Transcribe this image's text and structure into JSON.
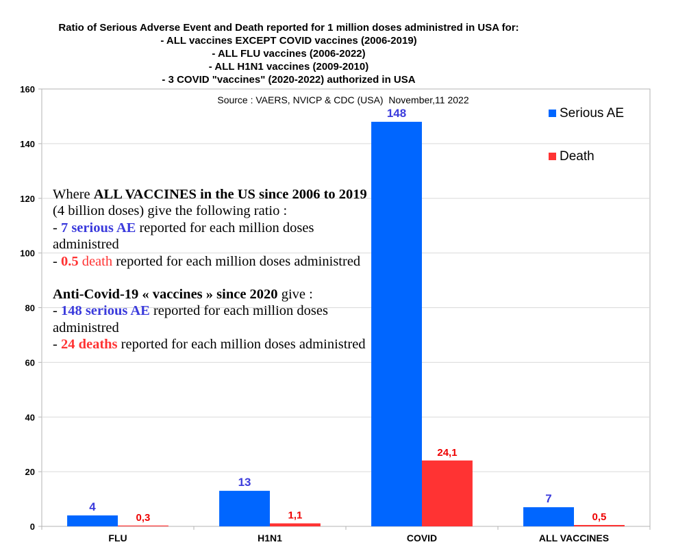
{
  "title_lines": [
    "Ratio of Serious Adverse Event and Death reported for 1 million doses administred in USA for:",
    "- ALL vaccines EXCEPT COVID vaccines (2006-2019)",
    "- ALL FLU vaccines (2006-2022)",
    "- ALL H1N1 vaccines (2009-2010)",
    "- 3 COVID \"vaccines\" (2020-2022) authorized in USA"
  ],
  "source": "Source : VAERS, NVICP & CDC (USA)  November,11 2022",
  "annotation": {
    "p1": {
      "t1": "Where ",
      "t2": "ALL VACCINES in the US since 2006 to 2019",
      "t3": " (4 billion doses) give the following ratio :"
    },
    "p2": {
      "t1": "- ",
      "t2": "7 serious AE",
      "t3": " reported for each million doses administred"
    },
    "p3": {
      "t1": "- ",
      "t2": "0.5",
      "t3": " death",
      "t4": " reported for each million doses administred"
    },
    "p4": {
      "t1": "Anti-Covid-19 « vaccines » since 2020",
      "t2": " give :"
    },
    "p5": {
      "t1": "- ",
      "t2": "148 serious AE",
      "t3": " reported for each million doses administred"
    },
    "p6": {
      "t1": "- ",
      "t2": "24 deaths",
      "t3": " reported for each million doses administred"
    }
  },
  "colors": {
    "serious_ae": "#0066ff",
    "death": "#ff3333",
    "label_blue": "#3b3bdc",
    "label_red": "#ee0000",
    "grid": "#d9d9d9",
    "axis": "#b3b3b3"
  },
  "chart_data": {
    "type": "bar",
    "categories": [
      "FLU",
      "H1N1",
      "COVID",
      "ALL VACCINES"
    ],
    "series": [
      {
        "name": "Serious AE",
        "values": [
          4,
          13,
          148,
          7
        ],
        "labels": [
          "4",
          "13",
          "148",
          "7"
        ]
      },
      {
        "name": "Death",
        "values": [
          0.3,
          1.1,
          24.1,
          0.5
        ],
        "labels": [
          "0,3",
          "1,1",
          "24,1",
          "0,5"
        ]
      }
    ],
    "ylim": [
      0,
      160
    ],
    "yticks": [
      0,
      20,
      40,
      60,
      80,
      100,
      120,
      140,
      160
    ],
    "grid": true,
    "legend_position": "top-right"
  }
}
